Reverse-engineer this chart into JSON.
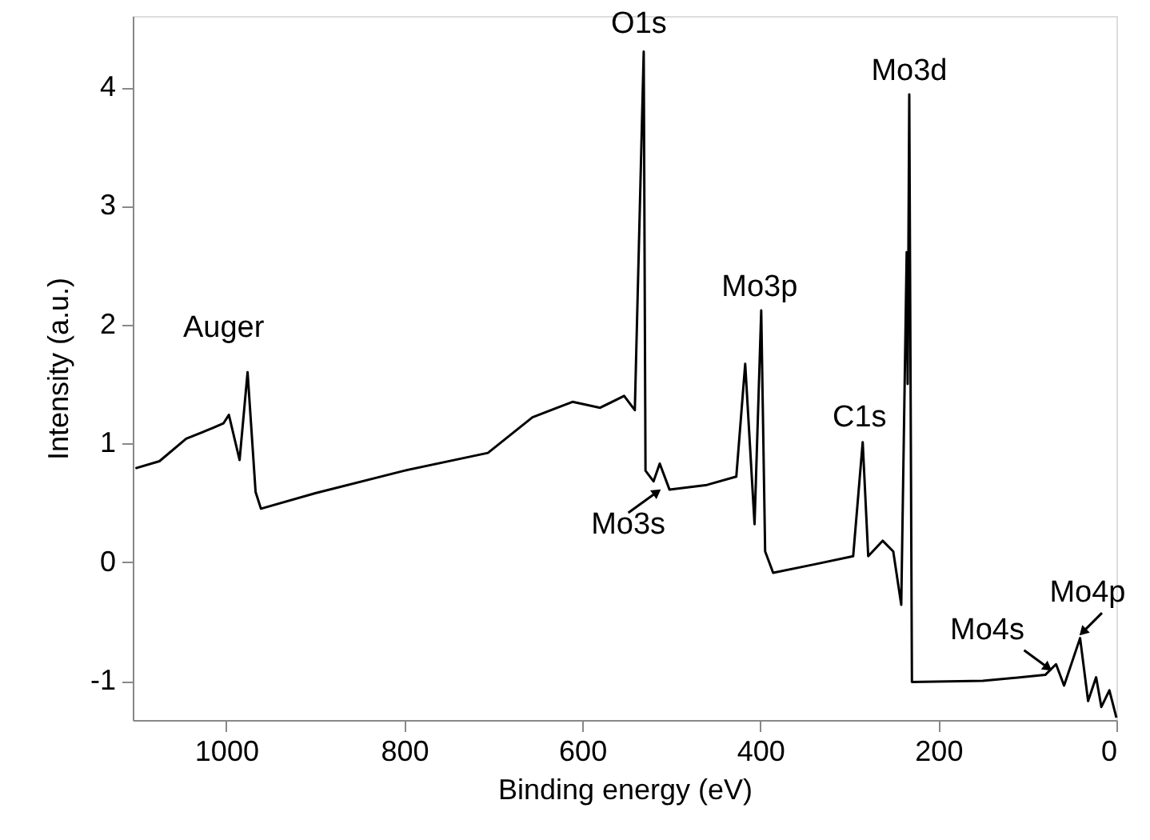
{
  "chart_data": {
    "type": "line",
    "xlabel": "Binding energy (eV)",
    "ylabel": "Intensity (a.u.)",
    "xlim": [
      1105,
      0
    ],
    "xticks": [
      0,
      200,
      400,
      600,
      800,
      1000
    ],
    "ylim": [
      -1.33,
      4.6
    ],
    "yticks": [
      -1,
      0,
      1,
      2,
      3,
      4
    ],
    "grid": false,
    "marker": "none",
    "line_style": "solid",
    "series": [
      {
        "color": "#000000",
        "x": [
          1102,
          1075,
          1045,
          1015,
          1003,
          997,
          985,
          976,
          967,
          961,
          900,
          800,
          706,
          656,
          611,
          580,
          553,
          541,
          531,
          529,
          520,
          513,
          502,
          460,
          427,
          417,
          406.5,
          399,
          394.6,
          385.6,
          340,
          295.7,
          285,
          278.8,
          262.6,
          250.7,
          241.7,
          235.6,
          234.5,
          232.7,
          229.7,
          150,
          79.9,
          67.8,
          58.8,
          40.8,
          31.8,
          22.8,
          16.9,
          7.9,
          0
        ],
        "values": [
          0.79,
          0.85,
          1.04,
          1.13,
          1.17,
          1.24,
          0.86,
          1.6,
          0.59,
          0.45,
          0.58,
          0.77,
          0.92,
          1.22,
          1.35,
          1.3,
          1.4,
          1.28,
          4.3,
          0.77,
          0.68,
          0.83,
          0.61,
          0.65,
          0.72,
          1.67,
          0.32,
          2.12,
          0.09,
          -0.09,
          -0.02,
          0.05,
          1.01,
          0.05,
          0.18,
          0.09,
          -0.36,
          2.61,
          1.5,
          3.94,
          -1.01,
          -1.0,
          -0.95,
          -0.86,
          -1.04,
          -0.64,
          -1.17,
          -0.97,
          -1.22,
          -1.08,
          -1.31
        ]
      }
    ],
    "annotations": [
      {
        "text": "Auger",
        "x": 976,
        "y": 1.6
      },
      {
        "text": "O1s",
        "x": 531,
        "y": 4.3
      },
      {
        "text": "Mo3s",
        "x": 516,
        "y": 0.59
      },
      {
        "text": "Mo3p",
        "x": 399,
        "y": 2.12
      },
      {
        "text": "C1s",
        "x": 285,
        "y": 1.01
      },
      {
        "text": "Mo3d",
        "x": 232.7,
        "y": 3.94
      },
      {
        "text": "Mo4s",
        "x": 76.8,
        "y": -0.89
      },
      {
        "text": "Mo4p",
        "x": 37.8,
        "y": -0.59
      }
    ]
  }
}
